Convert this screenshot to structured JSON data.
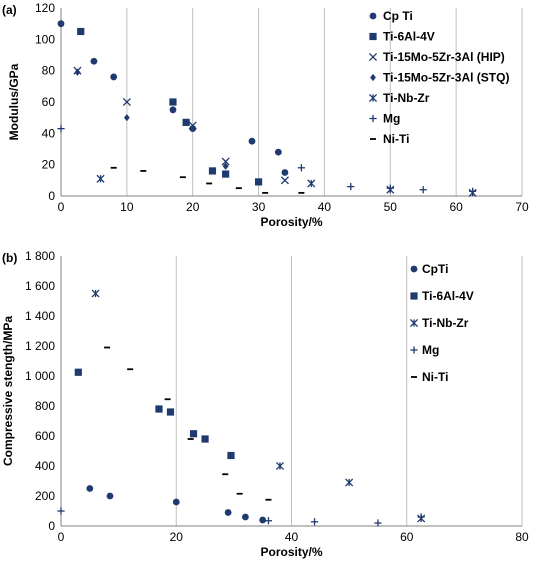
{
  "chart_data": [
    {
      "type": "scatter",
      "panel_label": "(a)",
      "xlabel": "Porosity/%",
      "ylabel": "Modulus/GPa",
      "xlim": [
        0,
        70
      ],
      "ylim": [
        0,
        120
      ],
      "xticks": [
        "0",
        "10",
        "20",
        "30",
        "40",
        "50",
        "60",
        "70"
      ],
      "yticks": [
        "0",
        "20",
        "40",
        "60",
        "80",
        "100",
        "120"
      ],
      "grid": "vertical",
      "legend_position": "right",
      "series": [
        {
          "name": "Cp Ti",
          "marker": "circle",
          "x": [
            0,
            5,
            8,
            17,
            20,
            29,
            33,
            34
          ],
          "y": [
            110,
            86,
            76,
            55,
            43,
            35,
            28,
            15
          ]
        },
        {
          "name": "Ti-6Al-4V",
          "marker": "square",
          "x": [
            3,
            17,
            19,
            23,
            25,
            30
          ],
          "y": [
            105,
            60,
            47,
            16,
            14,
            9
          ]
        },
        {
          "name": "Ti-15Mo-5Zr-3Al (HIP)",
          "marker": "x",
          "x": [
            2.5,
            10,
            20,
            25,
            34
          ],
          "y": [
            80,
            60,
            45,
            22,
            10
          ]
        },
        {
          "name": "Ti-15Mo-5Zr-3Al (STQ)",
          "marker": "diamond",
          "x": [
            2.5,
            10,
            25
          ],
          "y": [
            79,
            50,
            19
          ]
        },
        {
          "name": "Ti-Nb-Zr",
          "marker": "asterisk",
          "x": [
            6,
            38,
            50,
            62.5
          ],
          "y": [
            11,
            8,
            4,
            2
          ]
        },
        {
          "name": "Mg",
          "marker": "plus",
          "x": [
            0,
            36.5,
            44,
            50,
            55,
            62.5
          ],
          "y": [
            43,
            18,
            6,
            5,
            4,
            3
          ]
        },
        {
          "name": "Ni-Ti",
          "marker": "dash",
          "x": [
            8,
            12.5,
            18.5,
            22.5,
            27,
            31,
            36.5
          ],
          "y": [
            18,
            16,
            12,
            8,
            5,
            2,
            2
          ]
        }
      ]
    },
    {
      "type": "scatter",
      "panel_label": "(b)",
      "xlabel": "Porosity/%",
      "ylabel": "Compressive stength/MPa",
      "xlim": [
        0,
        80
      ],
      "ylim": [
        0,
        1800
      ],
      "xticks": [
        "0",
        "20",
        "40",
        "60",
        "80"
      ],
      "yticks": [
        "0",
        "200",
        "400",
        "600",
        "800",
        "1 000",
        "1 200",
        "1 400",
        "1 600",
        "1 800"
      ],
      "grid": "vertical",
      "legend_position": "right",
      "series": [
        {
          "name": "CpTi",
          "marker": "circle",
          "x": [
            5,
            8.5,
            20,
            29,
            32,
            35
          ],
          "y": [
            250,
            200,
            160,
            90,
            60,
            40
          ]
        },
        {
          "name": "Ti-6Al-4V",
          "marker": "square",
          "x": [
            3,
            17,
            19,
            23,
            25,
            29.5
          ],
          "y": [
            1025,
            780,
            760,
            615,
            580,
            470
          ]
        },
        {
          "name": "Ti-Nb-Zr",
          "marker": "asterisk",
          "x": [
            6,
            38,
            50,
            62.5
          ],
          "y": [
            1550,
            400,
            290,
            50
          ]
        },
        {
          "name": "Mg",
          "marker": "plus",
          "x": [
            0,
            36,
            44,
            55,
            62.5
          ],
          "y": [
            100,
            35,
            28,
            20,
            60
          ]
        },
        {
          "name": "Ni-Ti",
          "marker": "dash",
          "x": [
            8,
            12,
            18.5,
            22.5,
            28.5,
            31,
            36
          ],
          "y": [
            1190,
            1045,
            845,
            580,
            345,
            215,
            175
          ]
        }
      ]
    }
  ]
}
